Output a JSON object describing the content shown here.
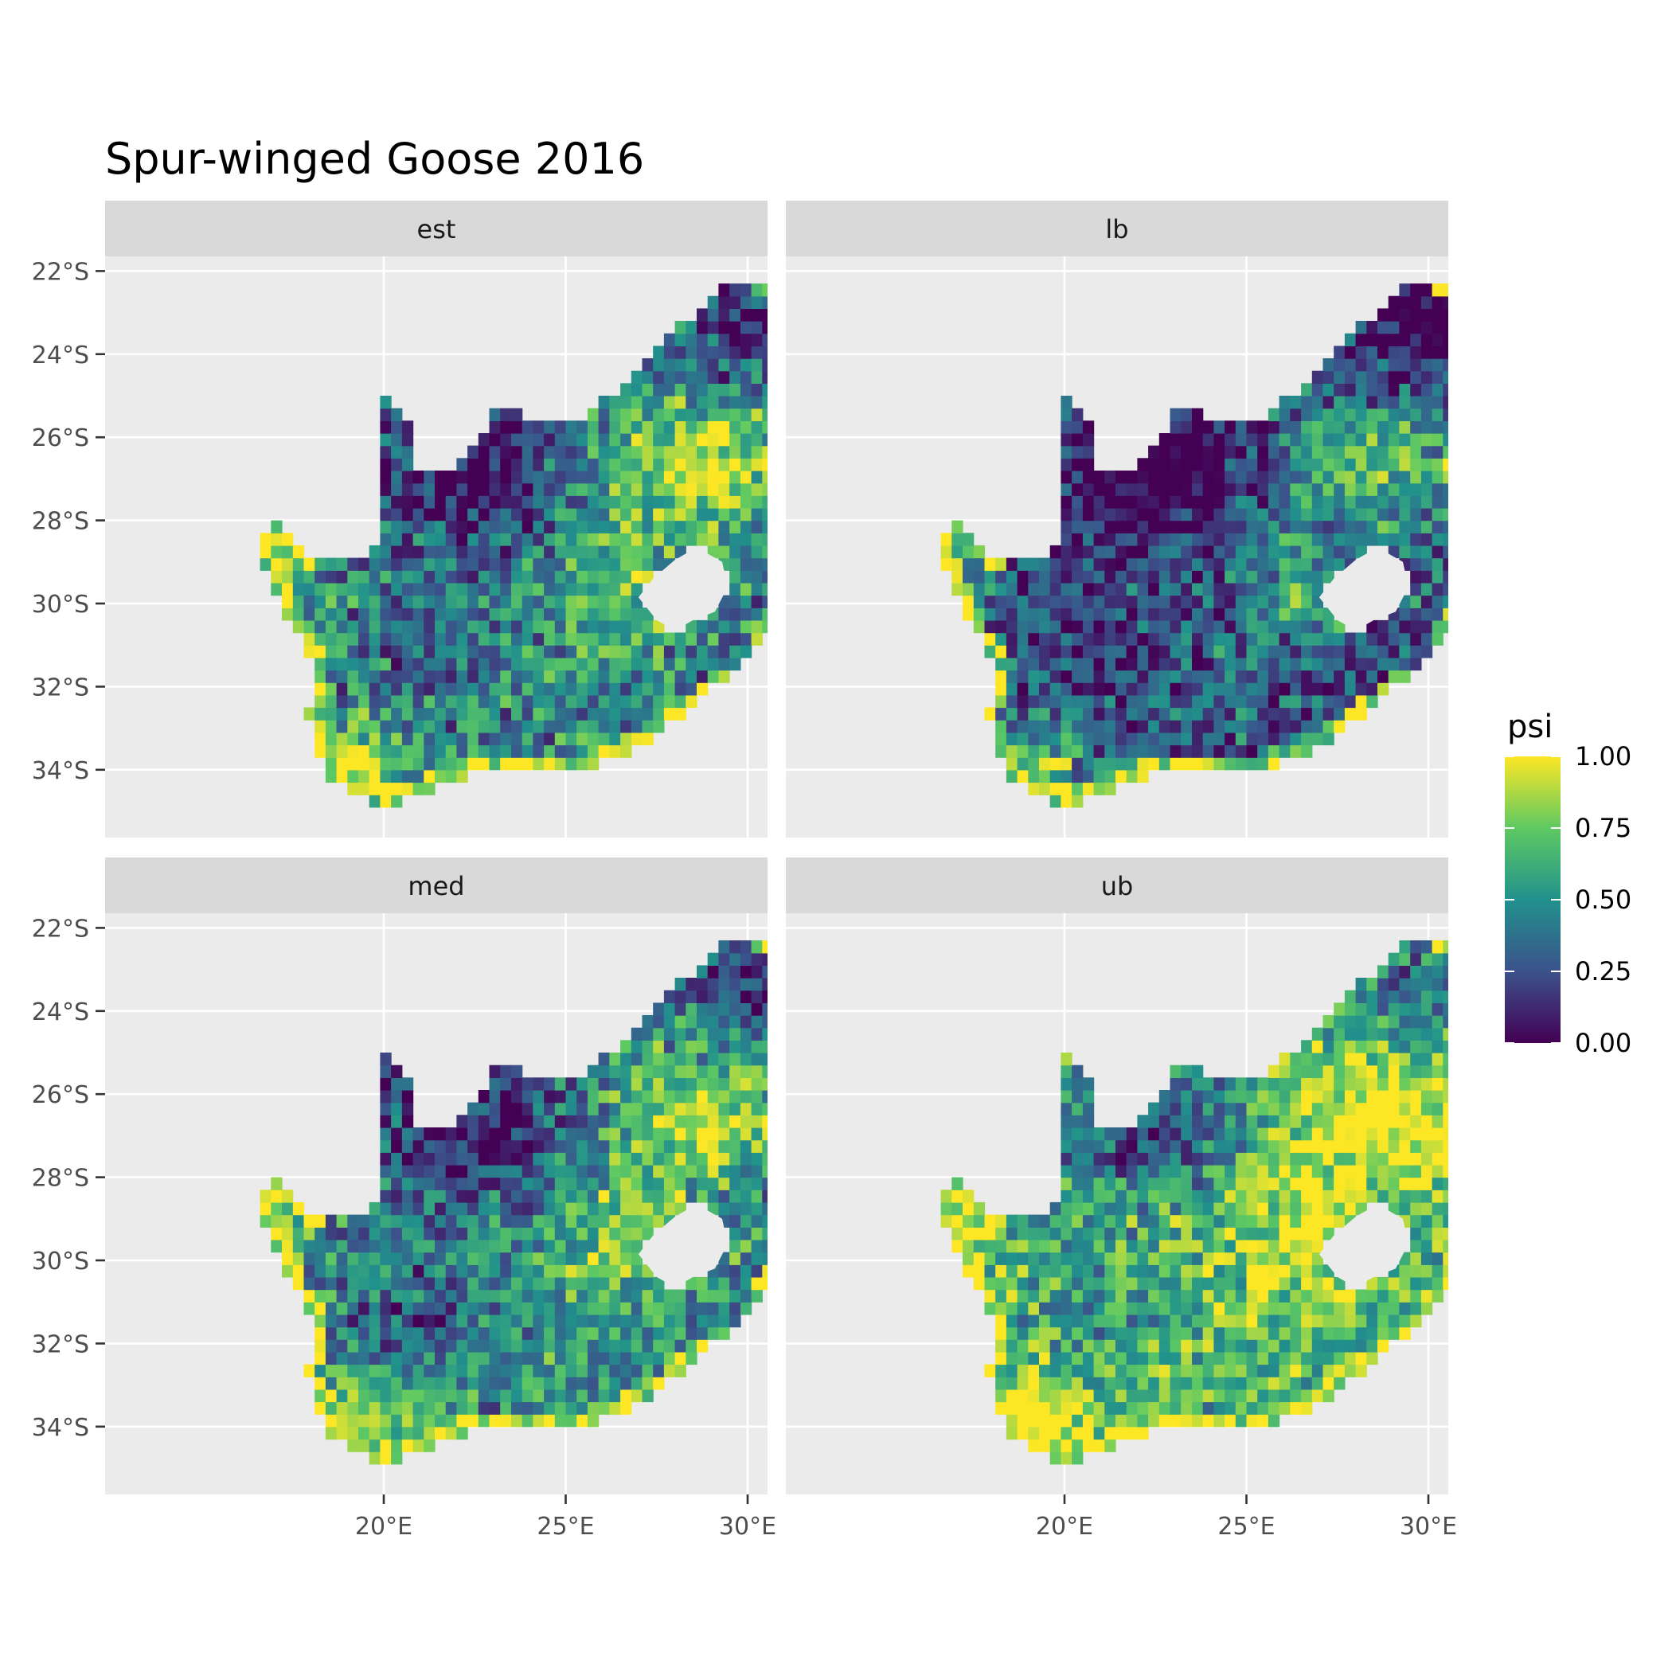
{
  "title": "Spur-winged Goose 2016",
  "chart_data": {
    "type": "heatmap",
    "title": "Spur-winged Goose 2016",
    "facets": [
      "est",
      "lb",
      "med",
      "ub"
    ],
    "x_ticks": [
      20,
      25,
      30
    ],
    "x_tick_labels": [
      "20°E",
      "25°E",
      "30°E"
    ],
    "y_ticks": [
      -22,
      -24,
      -26,
      -28,
      -30,
      -32,
      -34
    ],
    "y_tick_labels": [
      "22°S",
      "24°S",
      "26°S",
      "28°S",
      "30°S",
      "32°S",
      "34°S"
    ],
    "xlim": [
      15.6,
      33.8
    ],
    "ylim": [
      -35.4,
      -21.5
    ],
    "grid": true,
    "legend": {
      "title": "psi",
      "position": "right",
      "breaks": [
        1.0,
        0.75,
        0.5,
        0.25,
        0.0
      ],
      "labels": [
        "1.00",
        "0.75",
        "0.50",
        "0.25",
        "0.00"
      ],
      "range": [
        0,
        1
      ]
    },
    "regions": {
      "southern_coast_and_far_southwest": {
        "est": 0.95,
        "lb": 0.8,
        "med": 0.97,
        "ub": 1.0
      },
      "northern_cape_north": {
        "est": 0.1,
        "lb": 0.05,
        "med": 0.1,
        "ub": 0.3
      },
      "limpopo_north": {
        "est": 0.15,
        "lb": 0.05,
        "med": 0.1,
        "ub": 0.4
      },
      "highveld_central_east": {
        "est": 0.85,
        "lb": 0.65,
        "med": 0.85,
        "ub": 0.95
      },
      "karoo_interior": {
        "est": 0.45,
        "lb": 0.25,
        "med": 0.45,
        "ub": 0.7
      }
    },
    "colorscale": [
      "#440154",
      "#3b528b",
      "#21918c",
      "#5ec962",
      "#fde725"
    ]
  },
  "panel_bg": "#ebebeb",
  "strip_bg": "#d9d9d9",
  "grid_color": "#ffffff"
}
